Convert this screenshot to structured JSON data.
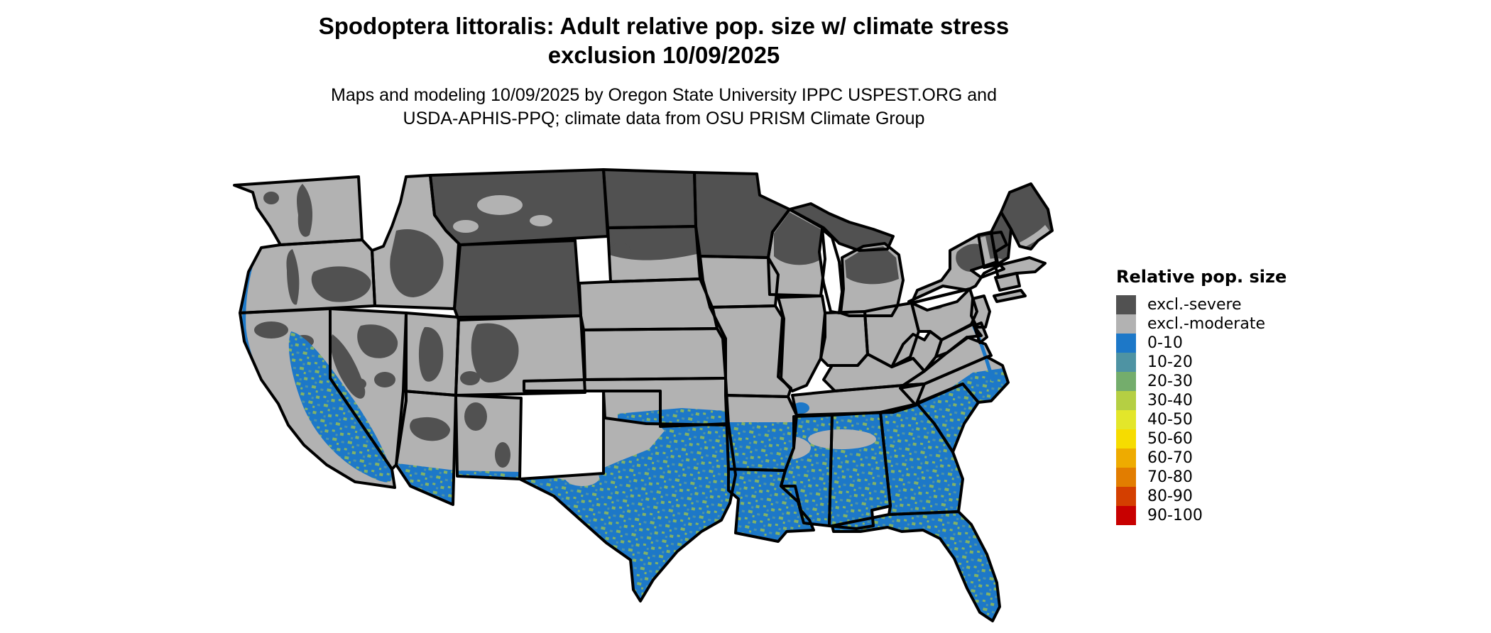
{
  "header": {
    "title_line1": "Spodoptera littoralis: Adult relative pop. size w/ climate stress",
    "title_line2": "exclusion 10/09/2025",
    "subtitle_line1": "Maps and modeling 10/09/2025 by Oregon State University IPPC USPEST.ORG and",
    "subtitle_line2": "USDA-APHIS-PPQ; climate data from OSU PRISM Climate Group"
  },
  "legend": {
    "title": "Relative pop. size",
    "items": [
      {
        "label": "excl.-severe",
        "color": "#515151"
      },
      {
        "label": "excl.-moderate",
        "color": "#b2b2b2"
      },
      {
        "label": "0-10",
        "color": "#1d78c8"
      },
      {
        "label": "10-20",
        "color": "#4e93a3"
      },
      {
        "label": "20-30",
        "color": "#74ad6c"
      },
      {
        "label": "30-40",
        "color": "#b5cf43"
      },
      {
        "label": "40-50",
        "color": "#e3e62a"
      },
      {
        "label": "50-60",
        "color": "#f6dc00"
      },
      {
        "label": "60-70",
        "color": "#eeab00"
      },
      {
        "label": "70-80",
        "color": "#e27d00"
      },
      {
        "label": "80-90",
        "color": "#d43f00"
      },
      {
        "label": "90-100",
        "color": "#c80000"
      }
    ]
  },
  "map": {
    "region": "Contiguous United States",
    "visible_classes": {
      "excluded_severe_dark_gray": "Montana, North Dakota, northern South Dakota, Minnesota, northern Wisconsin, Michigan, Wyoming, Maine, northern New England, Adirondacks, Rocky Mountain / Sierra / Cascade patches",
      "excluded_moderate_light_gray": "Pacific Northwest, Great Basin, Great Plains, Midwest, Ohio Valley, Mid-Atlantic, southern New England",
      "pop_0_30_blue_green_speckle": "California Central Valley and south coast, southern Arizona and New Mexico, southern and eastern Texas, Gulf Coast, Louisiana, Mississippi, Alabama, Georgia, Florida, South Carolina, eastern North Carolina, Atlantic coastal fringe"
    }
  },
  "colors": {
    "background": "#ffffff",
    "map_dark": "#515151",
    "map_light": "#b2b2b2",
    "map_blue": "#1d78c8",
    "speckle_teal": "#4e93a3",
    "speckle_green": "#82b266",
    "map_border": "#000000"
  }
}
